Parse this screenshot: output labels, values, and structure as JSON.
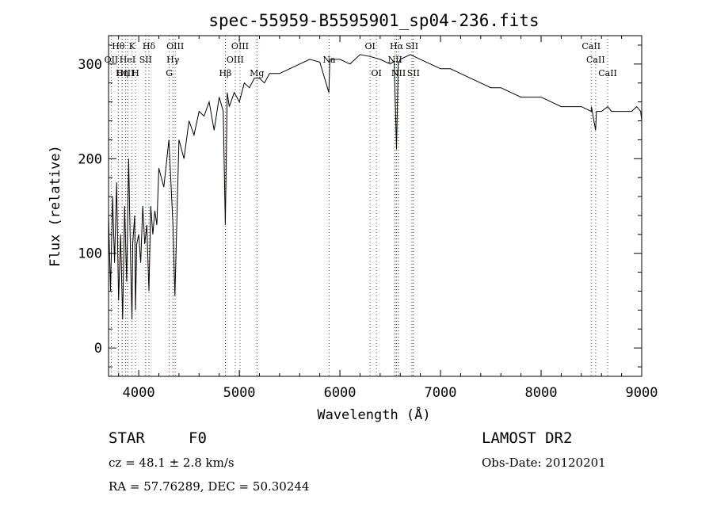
{
  "chart_data": {
    "type": "line",
    "title": "spec-55959-B5595901_sp04-236.fits",
    "xlabel": "Wavelength (Å)",
    "ylabel": "Flux (relative)",
    "xlim": [
      3700,
      9000
    ],
    "ylim": [
      -30,
      330
    ],
    "x_ticks": [
      4000,
      5000,
      6000,
      7000,
      8000,
      9000
    ],
    "y_ticks": [
      0,
      100,
      200,
      300
    ],
    "grid": false,
    "series": [
      {
        "color": "#000000",
        "x": [
          3700,
          3720,
          3740,
          3760,
          3780,
          3800,
          3820,
          3840,
          3860,
          3880,
          3900,
          3920,
          3933,
          3940,
          3960,
          3968,
          3980,
          4000,
          4020,
          4040,
          4060,
          4080,
          4102,
          4120,
          4140,
          4160,
          4180,
          4200,
          4250,
          4300,
          4340,
          4360,
          4400,
          4450,
          4500,
          4550,
          4600,
          4650,
          4700,
          4750,
          4800,
          4840,
          4861,
          4880,
          4900,
          4950,
          5000,
          5050,
          5100,
          5150,
          5200,
          5250,
          5300,
          5400,
          5500,
          5600,
          5700,
          5800,
          5890,
          5900,
          6000,
          6100,
          6200,
          6300,
          6400,
          6500,
          6540,
          6563,
          6580,
          6600,
          6700,
          6800,
          6900,
          7000,
          7100,
          7200,
          7300,
          7400,
          7500,
          7600,
          7700,
          7800,
          7900,
          8000,
          8100,
          8200,
          8300,
          8400,
          8498,
          8500,
          8542,
          8550,
          8600,
          8662,
          8700,
          8800,
          8900,
          8950,
          8990,
          9000
        ],
        "values": [
          140,
          60,
          160,
          90,
          175,
          50,
          120,
          30,
          150,
          70,
          200,
          90,
          30,
          110,
          140,
          40,
          110,
          120,
          90,
          150,
          110,
          130,
          60,
          150,
          120,
          145,
          130,
          190,
          170,
          220,
          130,
          55,
          220,
          200,
          240,
          225,
          250,
          245,
          260,
          230,
          265,
          250,
          130,
          270,
          255,
          270,
          260,
          280,
          275,
          285,
          285,
          280,
          290,
          290,
          295,
          300,
          305,
          302,
          270,
          305,
          305,
          300,
          310,
          308,
          305,
          300,
          303,
          210,
          300,
          305,
          310,
          305,
          300,
          295,
          295,
          290,
          285,
          280,
          275,
          275,
          270,
          265,
          265,
          265,
          260,
          255,
          255,
          255,
          250,
          255,
          230,
          250,
          250,
          255,
          250,
          250,
          250,
          255,
          250,
          240
        ]
      }
    ],
    "lines": [
      {
        "label": "Hθ",
        "x": 3797,
        "color": "#8b0000",
        "row": 1
      },
      {
        "label": "OII",
        "x": 3727,
        "color": "#555555",
        "row": 2
      },
      {
        "label": "OIII",
        "x": 3869,
        "color": "#555555",
        "row": 3
      },
      {
        "label": "K",
        "x": 3934,
        "color": "#555555",
        "row": 1
      },
      {
        "label": "HeI",
        "x": 3889,
        "color": "#8b0000",
        "row": 2
      },
      {
        "label": "Hη",
        "x": 3835,
        "color": "#8b0000",
        "row": 3
      },
      {
        "label": "SII",
        "x": 4069,
        "color": "#8b0000",
        "row": 2
      },
      {
        "label": "H",
        "x": 3968,
        "color": "#555555",
        "row": 3
      },
      {
        "label": "Hδ",
        "x": 4102,
        "color": "#8b0000",
        "row": 1
      },
      {
        "label": "OIII",
        "x": 4363,
        "color": "#555555",
        "row": 1
      },
      {
        "label": "Hγ",
        "x": 4340,
        "color": "#8b0000",
        "row": 2
      },
      {
        "label": "G",
        "x": 4304,
        "color": "#555555",
        "row": 3
      },
      {
        "label": "OIII",
        "x": 5007,
        "color": "#555555",
        "row": 1
      },
      {
        "label": "OIII",
        "x": 4959,
        "color": "#555555",
        "row": 2
      },
      {
        "label": "Hβ",
        "x": 4861,
        "color": "#8b0000",
        "row": 3
      },
      {
        "label": "Mg",
        "x": 5175,
        "color": "#8b0000",
        "row": 3
      },
      {
        "label": "Na",
        "x": 5893,
        "color": "#555555",
        "row": 2
      },
      {
        "label": "OI",
        "x": 6300,
        "color": "#555555",
        "row": 1
      },
      {
        "label": "OI",
        "x": 6363,
        "color": "#555555",
        "row": 3
      },
      {
        "label": "Hα",
        "x": 6563,
        "color": "#8b0000",
        "row": 1
      },
      {
        "label": "NII",
        "x": 6548,
        "color": "#8b0000",
        "row": 2
      },
      {
        "label": "NII",
        "x": 6583,
        "color": "#8b0000",
        "row": 3
      },
      {
        "label": "SII",
        "x": 6716,
        "color": "#8b0000",
        "row": 1
      },
      {
        "label": "SII",
        "x": 6731,
        "color": "#8b0000",
        "row": 3
      },
      {
        "label": "CaII",
        "x": 8498,
        "color": "#555555",
        "row": 1
      },
      {
        "label": "CaII",
        "x": 8542,
        "color": "#555555",
        "row": 2
      },
      {
        "label": "CaII",
        "x": 8662,
        "color": "#555555",
        "row": 3
      }
    ]
  },
  "info": {
    "object_type": "STAR",
    "subclass": "F0",
    "survey": "LAMOST DR2",
    "cz": "cz = 48.1 ± 2.8 km/s",
    "obs_date": "Obs-Date: 20120201",
    "coords": "RA =  57.76289, DEC =  50.30244"
  }
}
